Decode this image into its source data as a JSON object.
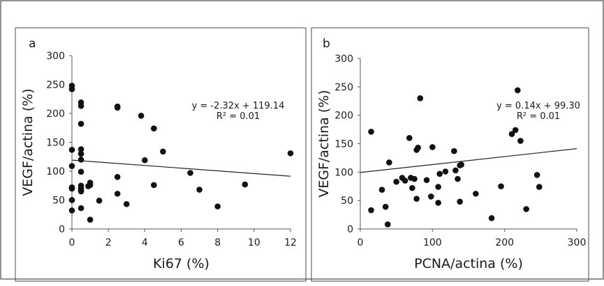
{
  "chart_data": [
    {
      "type": "scatter",
      "panel_label": "a",
      "xlabel": "Ki67 (%)",
      "ylabel": "VEGF/actina (%)",
      "xlim": [
        0,
        12
      ],
      "ylim": [
        0,
        300
      ],
      "xticks": [
        0,
        2,
        4,
        6,
        8,
        10,
        12
      ],
      "yticks": [
        0,
        50,
        100,
        150,
        200,
        250,
        300
      ],
      "trendline": {
        "slope": -2.32,
        "intercept": 119.14
      },
      "equation": "y = -2.32x + 119.14",
      "r2": "R² = 0.01",
      "x": [
        0,
        0,
        0,
        0,
        0,
        0,
        0,
        0,
        0,
        0,
        0.5,
        0.5,
        0.5,
        0.5,
        0.5,
        0.5,
        0.5,
        0.5,
        0.5,
        0.5,
        0.5,
        0.5,
        0.5,
        0.9,
        1,
        1,
        1,
        1.5,
        2.5,
        2.5,
        2.5,
        2.5,
        3,
        3.8,
        4,
        4.5,
        4.5,
        5,
        6.5,
        7,
        8,
        9.5,
        12
      ],
      "y": [
        248,
        242,
        137,
        109,
        72,
        70,
        50,
        32,
        70,
        50,
        219,
        213,
        182,
        138,
        130,
        120,
        99,
        75,
        70,
        66,
        36,
        70,
        65,
        74,
        80,
        76,
        16,
        49,
        212,
        210,
        90,
        61,
        43,
        196,
        119,
        174,
        76,
        134,
        97,
        68,
        39,
        77,
        131
      ]
    },
    {
      "type": "scatter",
      "panel_label": "b",
      "xlabel": "PCNA/actina (%)",
      "ylabel": "VEGF/actina (%)",
      "xlim": [
        0,
        300
      ],
      "ylim": [
        0,
        300
      ],
      "xticks": [
        0,
        100,
        200,
        300
      ],
      "yticks": [
        0,
        50,
        100,
        150,
        200,
        250,
        300
      ],
      "trendline": {
        "slope": 0.14,
        "intercept": 99.3
      },
      "equation": "y = 0.14x + 99.30",
      "r2": "R² = 0.01",
      "x": [
        15,
        15,
        30,
        35,
        38,
        40,
        50,
        58,
        62,
        68,
        70,
        72,
        75,
        78,
        78,
        80,
        83,
        92,
        98,
        100,
        108,
        108,
        110,
        118,
        130,
        132,
        135,
        138,
        138,
        140,
        160,
        182,
        195,
        210,
        215,
        218,
        222,
        230,
        245,
        248
      ],
      "y": [
        171,
        33,
        69,
        39,
        8,
        117,
        83,
        90,
        85,
        160,
        90,
        72,
        88,
        53,
        139,
        143,
        230,
        86,
        57,
        144,
        74,
        46,
        97,
        101,
        137,
        103,
        88,
        112,
        48,
        113,
        62,
        19,
        75,
        167,
        174,
        244,
        155,
        35,
        95,
        74
      ]
    }
  ]
}
